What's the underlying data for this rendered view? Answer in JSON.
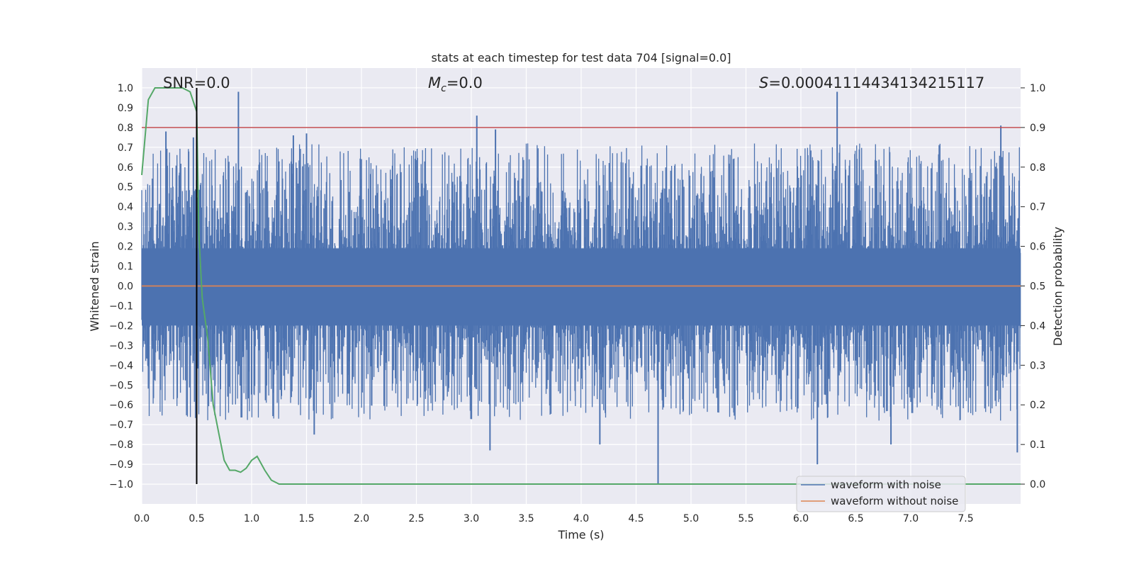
{
  "chart_data": {
    "type": "line",
    "title": "stats at each timestep for test data 704 [signal=0.0]",
    "xlabel": "Time (s)",
    "ylabel": "Whitened strain",
    "y2label": "Detection probability",
    "xlim": [
      0.0,
      8.0
    ],
    "ylim": [
      -1.1,
      1.1
    ],
    "y2lim": [
      -0.05,
      1.05
    ],
    "xticks": [
      "0.0",
      "0.5",
      "1.0",
      "1.5",
      "2.0",
      "2.5",
      "3.0",
      "3.5",
      "4.0",
      "4.5",
      "5.0",
      "5.5",
      "6.0",
      "6.5",
      "7.0",
      "7.5"
    ],
    "yticks": [
      "1.0",
      "0.9",
      "0.8",
      "0.7",
      "0.6",
      "0.5",
      "0.4",
      "0.3",
      "0.2",
      "0.1",
      "0.0",
      "−0.1",
      "−0.2",
      "−0.3",
      "−0.4",
      "−0.5",
      "−0.6",
      "−0.7",
      "−0.8",
      "−0.9",
      "−1.0"
    ],
    "y2ticks": [
      "1.0",
      "0.9",
      "0.8",
      "0.7",
      "0.6",
      "0.5",
      "0.4",
      "0.3",
      "0.2",
      "0.1",
      "0.0"
    ],
    "grid": true,
    "legend_position": "lower right",
    "annotations": {
      "snr": "SNR=0.0",
      "mc_symbol": "M",
      "mc_subscript": "c",
      "mc_value": "=0.0",
      "s_symbol": "S",
      "s_value": "=0.00041114434134215117"
    },
    "threshold_prob": 0.9,
    "marker_time": 0.5,
    "series": [
      {
        "name": "waveform with noise",
        "color": "#4c72b0",
        "envelope_abs": 0.45,
        "spikes": [
          {
            "x": 0.88,
            "y": 0.98
          },
          {
            "x": 0.22,
            "y": 0.78
          },
          {
            "x": 0.47,
            "y": 0.75
          },
          {
            "x": 1.38,
            "y": 0.76
          },
          {
            "x": 1.5,
            "y": 0.77
          },
          {
            "x": 3.05,
            "y": 0.86
          },
          {
            "x": 3.22,
            "y": 0.79
          },
          {
            "x": 6.33,
            "y": 0.98
          },
          {
            "x": 7.82,
            "y": 0.81
          },
          {
            "x": 4.7,
            "y": -1.0
          },
          {
            "x": 6.15,
            "y": -0.9
          },
          {
            "x": 3.17,
            "y": -0.83
          },
          {
            "x": 4.17,
            "y": -0.8
          },
          {
            "x": 6.82,
            "y": -0.8
          },
          {
            "x": 7.97,
            "y": -0.84
          },
          {
            "x": 1.57,
            "y": -0.75
          },
          {
            "x": 0.5,
            "y": -0.66
          }
        ]
      },
      {
        "name": "waveform without noise",
        "color": "#dd8452",
        "value": 0.0
      },
      {
        "name": "detection probability",
        "color": "#55a868",
        "x": [
          0.0,
          0.06,
          0.12,
          0.2,
          0.3,
          0.37,
          0.44,
          0.5,
          0.52,
          0.55,
          0.6,
          0.65,
          0.7,
          0.75,
          0.8,
          0.85,
          0.9,
          0.95,
          1.0,
          1.05,
          1.12,
          1.18,
          1.25,
          1.3,
          8.0
        ],
        "y": [
          0.78,
          0.97,
          1.0,
          1.0,
          1.0,
          1.0,
          0.99,
          0.94,
          0.63,
          0.47,
          0.37,
          0.2,
          0.13,
          0.06,
          0.035,
          0.035,
          0.03,
          0.04,
          0.06,
          0.07,
          0.035,
          0.01,
          0.0,
          0.0,
          0.0
        ]
      },
      {
        "name": "threshold",
        "color": "#c44e52",
        "value": 0.9
      }
    ]
  }
}
